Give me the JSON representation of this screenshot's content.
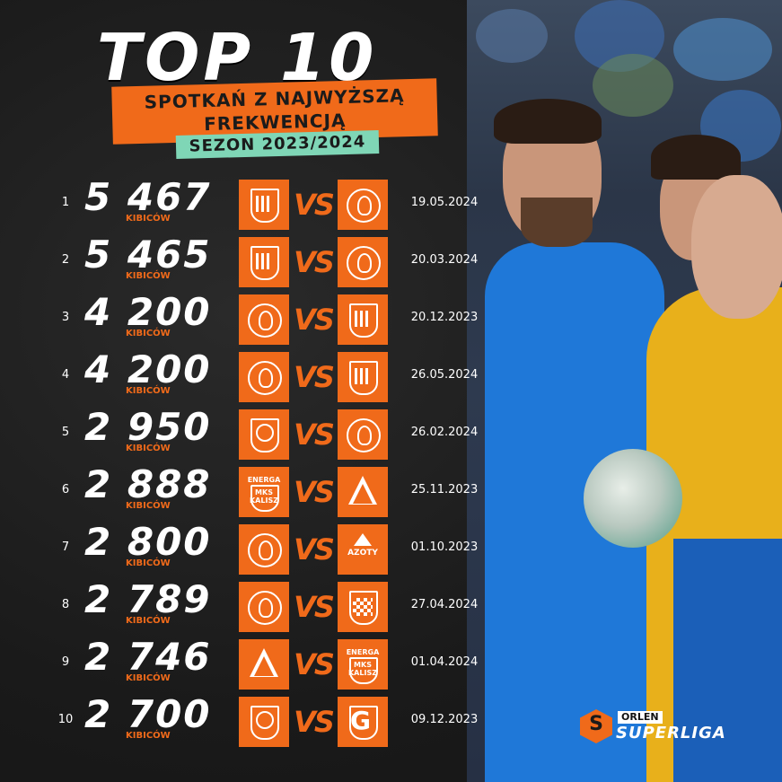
{
  "title": "TOP 10",
  "subtitle_line1": "SPOTKAŃ Z NAJWYŻSZĄ",
  "subtitle_line2": "FREKWENCJĄ",
  "season": "SEZON 2023/2024",
  "unit_label": "KIBICÓW",
  "vs_label": "VS",
  "colors": {
    "accent": "#f06a1a",
    "season_bg": "#7fd6b6",
    "background": "#1c1c1c"
  },
  "rows": [
    {
      "rank": "1",
      "attendance": "5 467",
      "home_crest": "shield-stripes-icon",
      "away_crest": "handball-player-icon",
      "date": "19.05.2024"
    },
    {
      "rank": "2",
      "attendance": "5 465",
      "home_crest": "shield-stripes-icon",
      "away_crest": "handball-player-icon",
      "date": "20.03.2024"
    },
    {
      "rank": "3",
      "attendance": "4 200",
      "home_crest": "handball-player-icon",
      "away_crest": "shield-stripes-icon",
      "date": "20.12.2023"
    },
    {
      "rank": "4",
      "attendance": "4 200",
      "home_crest": "handball-player-icon",
      "away_crest": "shield-stripes-icon",
      "date": "26.05.2024"
    },
    {
      "rank": "5",
      "attendance": "2 950",
      "home_crest": "shield-ball-icon",
      "away_crest": "handball-player-icon",
      "date": "26.02.2024"
    },
    {
      "rank": "6",
      "attendance": "2 888",
      "home_crest": "energa-mks-kalisz-crest",
      "away_crest": "triangle-crest-icon",
      "date": "25.11.2023"
    },
    {
      "rank": "7",
      "attendance": "2 800",
      "home_crest": "handball-player-icon",
      "away_crest": "azoty-crest-icon",
      "date": "01.10.2023"
    },
    {
      "rank": "8",
      "attendance": "2 789",
      "home_crest": "handball-player-icon",
      "away_crest": "checkered-shield-icon",
      "date": "27.04.2024"
    },
    {
      "rank": "9",
      "attendance": "2 746",
      "home_crest": "triangle-crest-icon",
      "away_crest": "energa-mks-kalisz-crest",
      "date": "01.04.2024"
    },
    {
      "rank": "10",
      "attendance": "2 700",
      "home_crest": "shield-ball-icon",
      "away_crest": "g-shield-icon",
      "date": "09.12.2023"
    }
  ],
  "crest_text": {
    "energa": "ENERGA",
    "mks": "MKS",
    "kalisz": "KALISZ",
    "azoty": "AZOTY"
  },
  "logo": {
    "mark": "S",
    "orlen": "ORLEN",
    "superliga": "SUPERLIGA"
  }
}
